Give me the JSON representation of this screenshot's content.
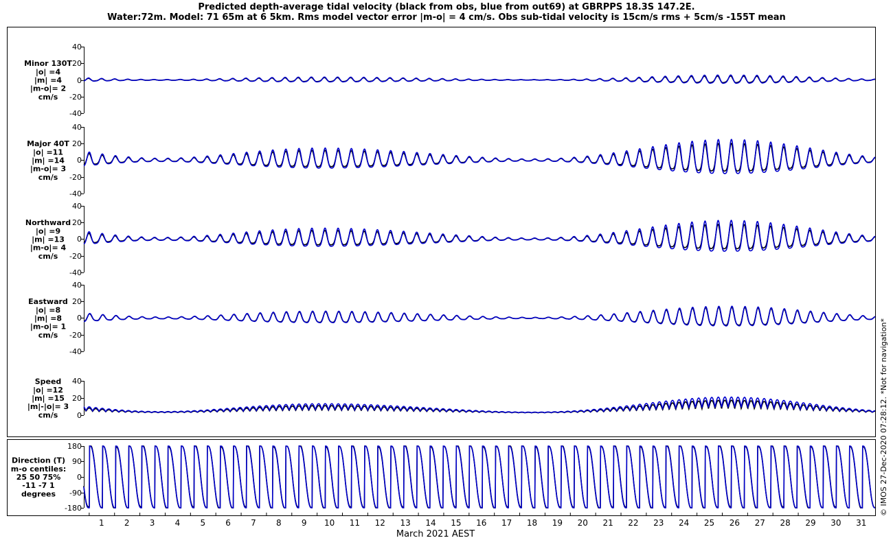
{
  "title_line1": "Predicted depth-average tidal velocity (black from obs, blue from out69) at GBRPPS 18.3S 147.2E.",
  "title_line2": "Water:72m. Model: 71 65m at 6 5km. Rms model vector error |m-o| = 4 cm/s. Obs sub-tidal velocity is 15cm/s rms + 5cm/s -155T mean",
  "copyright": "© IMOS 27-Dec-2020 07:28:12. *Not for navigation*",
  "chart_data": {
    "type": "line",
    "xlabel": "March 2021 AEST",
    "x_ticks": [
      "1",
      "2",
      "3",
      "4",
      "5",
      "6",
      "7",
      "8",
      "9",
      "10",
      "11",
      "12",
      "13",
      "14",
      "15",
      "16",
      "17",
      "18",
      "19",
      "20",
      "21",
      "22",
      "23",
      "24",
      "25",
      "26",
      "27",
      "28",
      "29",
      "30",
      "31"
    ],
    "xlim": [
      0.3,
      31.55
    ],
    "series_colors": {
      "obs": "#000000",
      "model": "#0000cc"
    },
    "panels": [
      {
        "id": "minor",
        "ylim": [
          -40,
          40
        ],
        "yticks": [
          "40",
          "20",
          "0",
          "-20",
          "-40"
        ],
        "label_lines": [
          "Minor 130T",
          "|o| =4",
          "|m| =4",
          "|m-o|= 2",
          "cm/s"
        ],
        "amplitude_obs": 4,
        "amplitude_model": 5
      },
      {
        "id": "major",
        "ylim": [
          -40,
          40
        ],
        "yticks": [
          "40",
          "20",
          "0",
          "-20",
          "-40"
        ],
        "label_lines": [
          "Major 40T",
          "|o| =11",
          "|m| =14",
          "|m-o|= 3",
          "cm/s"
        ],
        "amplitude_obs": 17,
        "amplitude_model": 21
      },
      {
        "id": "northward",
        "ylim": [
          -40,
          40
        ],
        "yticks": [
          "40",
          "20",
          "0",
          "-20",
          "-40"
        ],
        "label_lines": [
          "Northward",
          "|o| =9",
          "|m| =13",
          "|m-o|= 4",
          "cm/s"
        ],
        "amplitude_obs": 15,
        "amplitude_model": 19
      },
      {
        "id": "eastward",
        "ylim": [
          -40,
          40
        ],
        "yticks": [
          "40",
          "20",
          "0",
          "-20",
          "-40"
        ],
        "label_lines": [
          "Eastward",
          "|o| =8",
          "|m| =8",
          "|m-o|= 1",
          "cm/s"
        ],
        "amplitude_obs": 11,
        "amplitude_model": 12
      },
      {
        "id": "speed",
        "ylim": [
          0,
          50
        ],
        "yticks": [
          "40",
          "20",
          "0"
        ],
        "label_lines": [
          "Speed",
          "|o| =12",
          "|m| =15",
          "|m|-|o|= 3",
          "cm/s"
        ],
        "amplitude_obs": 12,
        "amplitude_model": 15
      },
      {
        "id": "direction",
        "ylim": [
          -180,
          180
        ],
        "yticks": [
          "180",
          "90",
          "0",
          "-90",
          "-180"
        ],
        "label_lines": [
          "Direction (T)",
          "m-o centiles:",
          "25  50  75%",
          "-11  -7   1",
          "degrees"
        ]
      }
    ]
  }
}
